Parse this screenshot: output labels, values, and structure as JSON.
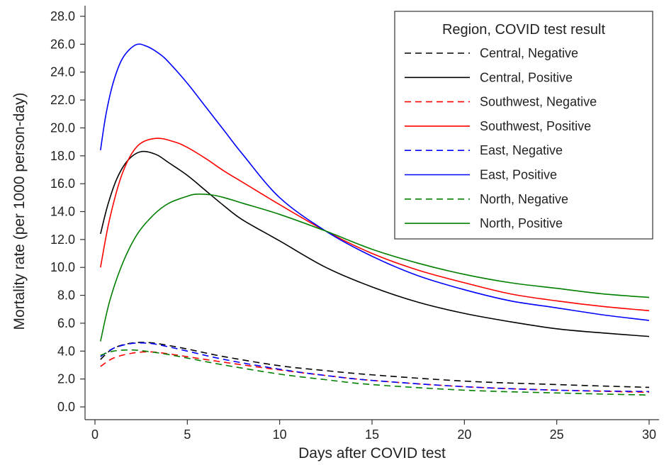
{
  "chart_data": {
    "type": "line",
    "xlabel": "Days after COVID test",
    "ylabel": "Mortality rate (per 1000 person-day)",
    "xlim": [
      0,
      30
    ],
    "ylim": [
      0,
      28
    ],
    "x_ticks": [
      0,
      5,
      10,
      15,
      20,
      25,
      30
    ],
    "y_ticks": [
      "0.0",
      "2.0",
      "4.0",
      "6.0",
      "8.0",
      "10.0",
      "12.0",
      "14.0",
      "16.0",
      "18.0",
      "20.0",
      "22.0",
      "24.0",
      "26.0",
      "28.0"
    ],
    "grid": false,
    "legend": {
      "title": "Region, COVID test result",
      "position": "top-right"
    },
    "series": [
      {
        "name": "Central, Negative",
        "color": "#000000",
        "dash": "dashed",
        "points": [
          [
            0.3,
            3.4
          ],
          [
            1,
            4.2
          ],
          [
            2,
            4.58
          ],
          [
            3,
            4.6
          ],
          [
            4,
            4.4
          ],
          [
            5,
            4.15
          ],
          [
            7,
            3.6
          ],
          [
            10,
            2.95
          ],
          [
            12.5,
            2.6
          ],
          [
            15,
            2.3
          ],
          [
            20,
            1.85
          ],
          [
            25,
            1.6
          ],
          [
            30,
            1.4
          ]
        ]
      },
      {
        "name": "Central, Positive",
        "color": "#000000",
        "dash": "solid",
        "points": [
          [
            0.3,
            12.4
          ],
          [
            0.7,
            14.5
          ],
          [
            1.2,
            16.4
          ],
          [
            1.8,
            17.7
          ],
          [
            2.5,
            18.3
          ],
          [
            3.3,
            18.1
          ],
          [
            4,
            17.5
          ],
          [
            5,
            16.6
          ],
          [
            6,
            15.5
          ],
          [
            7,
            14.4
          ],
          [
            8,
            13.4
          ],
          [
            10,
            11.9
          ],
          [
            12.5,
            10.0
          ],
          [
            15,
            8.6
          ],
          [
            17.5,
            7.5
          ],
          [
            20,
            6.7
          ],
          [
            22.5,
            6.1
          ],
          [
            25,
            5.6
          ],
          [
            27.5,
            5.3
          ],
          [
            30,
            5.05
          ]
        ]
      },
      {
        "name": "Southwest, Negative",
        "color": "#ff0000",
        "dash": "dashed",
        "points": [
          [
            0.3,
            2.9
          ],
          [
            1,
            3.5
          ],
          [
            2,
            3.85
          ],
          [
            3,
            3.95
          ],
          [
            4,
            3.8
          ],
          [
            5,
            3.6
          ],
          [
            7,
            3.2
          ],
          [
            10,
            2.65
          ],
          [
            12.5,
            2.25
          ],
          [
            15,
            1.9
          ],
          [
            20,
            1.45
          ],
          [
            25,
            1.2
          ],
          [
            30,
            1.05
          ]
        ]
      },
      {
        "name": "Southwest, Positive",
        "color": "#ff0000",
        "dash": "solid",
        "points": [
          [
            0.3,
            10.0
          ],
          [
            0.8,
            13.5
          ],
          [
            1.5,
            16.8
          ],
          [
            2.3,
            18.7
          ],
          [
            3.3,
            19.25
          ],
          [
            4.3,
            19.0
          ],
          [
            5,
            18.6
          ],
          [
            6,
            17.8
          ],
          [
            7,
            16.9
          ],
          [
            8,
            16.1
          ],
          [
            10,
            14.5
          ],
          [
            12.5,
            12.6
          ],
          [
            15,
            11.0
          ],
          [
            17.5,
            9.8
          ],
          [
            20,
            8.9
          ],
          [
            22.5,
            8.1
          ],
          [
            25,
            7.6
          ],
          [
            27.5,
            7.2
          ],
          [
            30,
            6.9
          ]
        ]
      },
      {
        "name": "East, Negative",
        "color": "#0000ff",
        "dash": "dashed",
        "points": [
          [
            0.3,
            3.6
          ],
          [
            1,
            4.2
          ],
          [
            2,
            4.55
          ],
          [
            3,
            4.55
          ],
          [
            4,
            4.3
          ],
          [
            5,
            4.0
          ],
          [
            7,
            3.4
          ],
          [
            10,
            2.7
          ],
          [
            12.5,
            2.25
          ],
          [
            15,
            1.9
          ],
          [
            20,
            1.45
          ],
          [
            25,
            1.2
          ],
          [
            30,
            1.1
          ]
        ]
      },
      {
        "name": "East, Positive",
        "color": "#0000ff",
        "dash": "solid",
        "points": [
          [
            0.3,
            18.4
          ],
          [
            0.6,
            21.0
          ],
          [
            1,
            23.3
          ],
          [
            1.5,
            25.0
          ],
          [
            2.2,
            25.95
          ],
          [
            2.8,
            25.85
          ],
          [
            3.5,
            25.3
          ],
          [
            4,
            24.7
          ],
          [
            5,
            23.2
          ],
          [
            6,
            21.5
          ],
          [
            7,
            19.8
          ],
          [
            8,
            18.1
          ],
          [
            10,
            15.0
          ],
          [
            12.5,
            12.6
          ],
          [
            15,
            10.8
          ],
          [
            17.5,
            9.4
          ],
          [
            20,
            8.4
          ],
          [
            22.5,
            7.6
          ],
          [
            25,
            7.1
          ],
          [
            27.5,
            6.6
          ],
          [
            30,
            6.2
          ]
        ]
      },
      {
        "name": "North, Negative",
        "color": "#008000",
        "dash": "dashed",
        "points": [
          [
            0.3,
            3.7
          ],
          [
            1,
            4.0
          ],
          [
            2,
            4.08
          ],
          [
            3,
            3.95
          ],
          [
            4,
            3.75
          ],
          [
            5,
            3.5
          ],
          [
            7,
            3.0
          ],
          [
            10,
            2.35
          ],
          [
            12.5,
            1.95
          ],
          [
            15,
            1.6
          ],
          [
            20,
            1.2
          ],
          [
            25,
            1.0
          ],
          [
            30,
            0.85
          ]
        ]
      },
      {
        "name": "North, Positive",
        "color": "#008000",
        "dash": "solid",
        "points": [
          [
            0.3,
            4.7
          ],
          [
            0.8,
            7.6
          ],
          [
            1.5,
            10.3
          ],
          [
            2.3,
            12.4
          ],
          [
            3.2,
            13.8
          ],
          [
            4,
            14.6
          ],
          [
            5,
            15.1
          ],
          [
            5.5,
            15.25
          ],
          [
            6.3,
            15.2
          ],
          [
            7,
            15.0
          ],
          [
            8,
            14.6
          ],
          [
            10,
            13.8
          ],
          [
            12.5,
            12.6
          ],
          [
            15,
            11.3
          ],
          [
            17.5,
            10.3
          ],
          [
            20,
            9.5
          ],
          [
            22.5,
            8.9
          ],
          [
            25,
            8.5
          ],
          [
            27.5,
            8.1
          ],
          [
            30,
            7.85
          ]
        ]
      }
    ]
  }
}
